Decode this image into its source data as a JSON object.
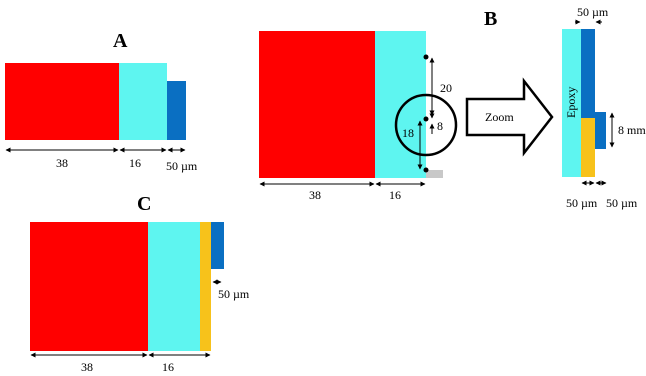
{
  "colors": {
    "red": "#ff0000",
    "cyan": "#5ef5f0",
    "blue": "#0a6fc2",
    "gold": "#f7c21b",
    "gray": "#c8c8c8",
    "line": "#000000"
  },
  "panel_a": {
    "letter": "A",
    "dim_red": "38",
    "dim_cyan": "16",
    "dim_blue": "50 µm"
  },
  "panel_middle": {
    "dim_red": "38",
    "dim_cyan": "16",
    "dim_top": "20",
    "dim_left": "18",
    "dim_small": "8"
  },
  "zoom": {
    "arrow_label": "Zoom"
  },
  "panel_b": {
    "letter": "B",
    "epoxy_label": "Epoxy",
    "dim_top": "50 µm",
    "dim_right": "8 mm",
    "dim_bottom_left": "50 µm",
    "dim_bottom_right": "50 µm"
  },
  "panel_c": {
    "letter": "C",
    "dim_red": "38",
    "dim_cyan": "16",
    "dim_right": "50 µm"
  }
}
